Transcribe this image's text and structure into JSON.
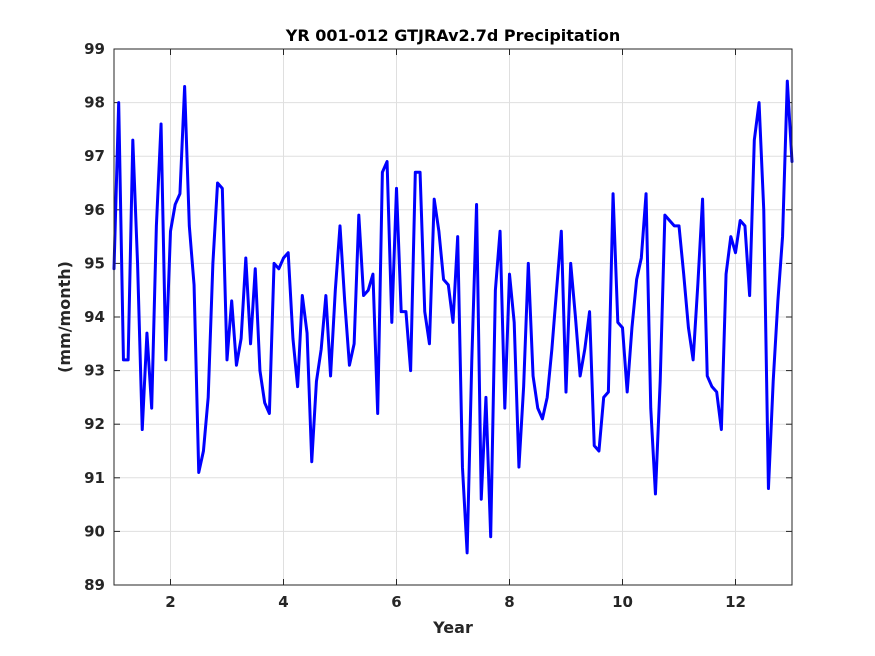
{
  "chart_data": {
    "type": "line",
    "title": "YR 001-012 GTJRAv2.7d Precipitation",
    "xlabel": "Year",
    "ylabel": "(mm/month)",
    "xlim": [
      1,
      13
    ],
    "ylim": [
      89,
      99
    ],
    "xticks": [
      2,
      4,
      6,
      8,
      10,
      12
    ],
    "yticks": [
      89,
      90,
      91,
      92,
      93,
      94,
      95,
      96,
      97,
      98,
      99
    ],
    "grid": true,
    "line_color": "#0000ff",
    "series": [
      {
        "x": [
          1.0,
          1.083,
          1.167,
          1.25,
          1.333,
          1.417,
          1.5,
          1.583,
          1.667,
          1.75,
          1.833,
          1.917,
          2.0,
          2.083,
          2.167,
          2.25,
          2.333,
          2.417,
          2.5,
          2.583,
          2.667,
          2.75,
          2.833,
          2.917,
          3.0,
          3.083,
          3.167,
          3.25,
          3.333,
          3.417,
          3.5,
          3.583,
          3.667,
          3.75,
          3.833,
          3.917,
          4.0,
          4.083,
          4.167,
          4.25,
          4.333,
          4.417,
          4.5,
          4.583,
          4.667,
          4.75,
          4.833,
          4.917,
          5.0,
          5.083,
          5.167,
          5.25,
          5.333,
          5.417,
          5.5,
          5.583,
          5.667,
          5.75,
          5.833,
          5.917,
          6.0,
          6.083,
          6.167,
          6.25,
          6.333,
          6.417,
          6.5,
          6.583,
          6.667,
          6.75,
          6.833,
          6.917,
          7.0,
          7.083,
          7.167,
          7.25,
          7.333,
          7.417,
          7.5,
          7.583,
          7.667,
          7.75,
          7.833,
          7.917,
          8.0,
          8.083,
          8.167,
          8.25,
          8.333,
          8.417,
          8.5,
          8.583,
          8.667,
          8.75,
          8.833,
          8.917,
          9.0,
          9.083,
          9.167,
          9.25,
          9.333,
          9.417,
          9.5,
          9.583,
          9.667,
          9.75,
          9.833,
          9.917,
          10.0,
          10.083,
          10.167,
          10.25,
          10.333,
          10.417,
          10.5,
          10.583,
          10.667,
          10.75,
          10.833,
          10.917,
          11.0,
          11.083,
          11.167,
          11.25,
          11.333,
          11.417,
          11.5,
          11.583,
          11.667,
          11.75,
          11.833,
          11.917,
          12.0,
          12.083,
          12.167,
          12.25,
          12.333,
          12.417,
          12.5,
          12.583,
          12.667,
          12.75,
          12.833,
          12.917,
          13.0
        ],
        "values": [
          94.9,
          98.0,
          93.2,
          93.2,
          97.3,
          95.0,
          91.9,
          93.7,
          92.3,
          95.7,
          97.6,
          93.2,
          95.6,
          96.1,
          96.3,
          98.3,
          95.7,
          94.6,
          91.1,
          91.5,
          92.5,
          95.0,
          96.5,
          96.4,
          93.2,
          94.3,
          93.1,
          93.6,
          95.1,
          93.5,
          94.9,
          93.0,
          92.4,
          92.2,
          95.0,
          94.9,
          95.1,
          95.2,
          93.6,
          92.7,
          94.4,
          93.7,
          91.3,
          92.8,
          93.4,
          94.4,
          92.9,
          94.5,
          95.7,
          94.3,
          93.1,
          93.5,
          95.9,
          94.4,
          94.5,
          94.8,
          92.2,
          96.7,
          96.9,
          93.9,
          96.4,
          94.1,
          94.1,
          93.0,
          96.7,
          96.7,
          94.1,
          93.5,
          96.2,
          95.6,
          94.7,
          94.6,
          93.9,
          95.5,
          91.2,
          89.6,
          93.2,
          96.1,
          90.6,
          92.5,
          89.9,
          94.5,
          95.6,
          92.3,
          94.8,
          93.9,
          91.2,
          92.7,
          95.0,
          92.9,
          92.3,
          92.1,
          92.5,
          93.4,
          94.5,
          95.6,
          92.6,
          95.0,
          94.0,
          92.9,
          93.4,
          94.1,
          91.6,
          91.5,
          92.5,
          92.6,
          96.3,
          93.9,
          93.8,
          92.6,
          93.8,
          94.7,
          95.1,
          96.3,
          92.3,
          90.7,
          92.8,
          95.9,
          95.8,
          95.7,
          95.7,
          94.8,
          93.8,
          93.2,
          94.6,
          96.2,
          92.9,
          92.7,
          92.6,
          91.9,
          94.8,
          95.5,
          95.2,
          95.8,
          95.7,
          94.4,
          97.3,
          98.0,
          96.0,
          90.8,
          92.8,
          94.3,
          95.5,
          98.4,
          96.9
        ]
      }
    ]
  }
}
